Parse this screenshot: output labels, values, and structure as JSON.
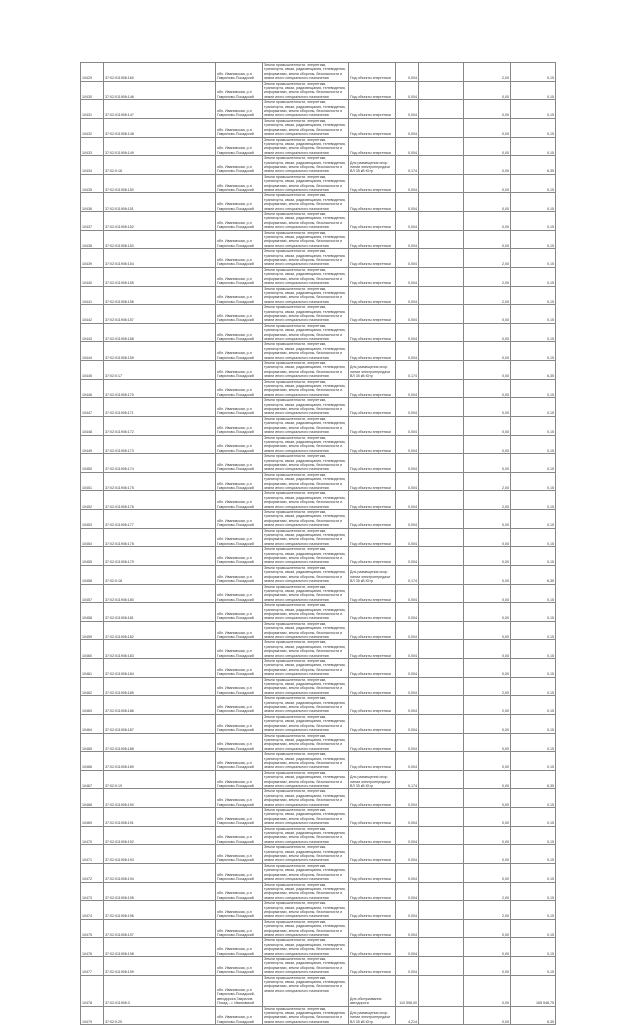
{
  "table": {
    "address": "обл. Ивановская, р-н Гаврилово-Посадский",
    "category": "Земли промышленности, энергетики, транспорта, связи, радиовещания, телевидения, информатики, земли обороны, безопасности и земли иного специального назначения",
    "use_default": "Под объекты энергетики",
    "use_opora": "Для размещения опор линии электропередачи ВЛ 35 кВ Ютр",
    "rows": [
      [
        "10429",
        "37:02:011906:160",
        "d",
        "0,004",
        "2,00",
        "0,15"
      ],
      [
        "10430",
        "37:02:011906:146",
        "d",
        "0,004",
        "0,00",
        "0,15"
      ],
      [
        "10431",
        "37:02:011906:147",
        "d",
        "0,004",
        "0,00",
        "0,15"
      ],
      [
        "10432",
        "37:02:011906:148",
        "d",
        "0,004",
        "0,00",
        "0,15"
      ],
      [
        "10433",
        "37:02:011906:149",
        "d",
        "0,004",
        "0,00",
        "0,15"
      ],
      [
        "10434",
        "37:02:0:16",
        "o",
        "0,174",
        "0,00",
        "6,35"
      ],
      [
        "10435",
        "37:02:011906:150",
        "d",
        "0,004",
        "0,00",
        "0,15"
      ],
      [
        "10436",
        "37:02:011906:151",
        "d",
        "0,004",
        "0,00",
        "0,15"
      ],
      [
        "10437",
        "37:02:011906:152",
        "d",
        "0,004",
        "0,00",
        "0,15"
      ],
      [
        "10438",
        "37:02:011906:153",
        "d",
        "0,004",
        "0,00",
        "0,15"
      ],
      [
        "10439",
        "37:02:011906:154",
        "d",
        "0,004",
        "2,00",
        "0,15"
      ],
      [
        "10440",
        "37:02:011906:155",
        "d",
        "0,004",
        "2,00",
        "0,15"
      ],
      [
        "10441",
        "37:02:011906:156",
        "d",
        "0,004",
        "2,00",
        "0,15"
      ],
      [
        "10442",
        "37:02:011906:157",
        "d",
        "0,004",
        "0,00",
        "0,15"
      ],
      [
        "10443",
        "37:02:011906:158",
        "d",
        "0,004",
        "0,00",
        "0,15"
      ],
      [
        "10444",
        "37:02:011906:159",
        "d",
        "0,004",
        "0,00",
        "0,15"
      ],
      [
        "10445",
        "37:02:0:17",
        "o",
        "0,174",
        "0,00",
        "6,35"
      ],
      [
        "10446",
        "37:02:011906:170",
        "d",
        "0,004",
        "0,00",
        "0,15"
      ],
      [
        "10447",
        "37:02:011906:171",
        "d",
        "0,004",
        "0,00",
        "0,15"
      ],
      [
        "10448",
        "37:02:011906:172",
        "d",
        "0,004",
        "0,00",
        "0,15"
      ],
      [
        "10449",
        "37:02:011906:173",
        "d",
        "0,004",
        "0,00",
        "0,15"
      ],
      [
        "10450",
        "37:02:011906:174",
        "d",
        "0,004",
        "0,00",
        "0,15"
      ],
      [
        "10451",
        "37:02:011906:175",
        "d",
        "0,004",
        "2,00",
        "0,15"
      ],
      [
        "10452",
        "37:02:011906:176",
        "d",
        "0,004",
        "2,00",
        "0,15"
      ],
      [
        "10453",
        "37:02:011906:177",
        "d",
        "0,004",
        "0,00",
        "0,15"
      ],
      [
        "10454",
        "37:02:011906:178",
        "d",
        "0,004",
        "0,00",
        "0,15"
      ],
      [
        "10455",
        "37:02:011906:179",
        "d",
        "0,004",
        "0,00",
        "0,15"
      ],
      [
        "10456",
        "37:02:0:18",
        "o",
        "0,174",
        "0,00",
        "6,35"
      ],
      [
        "10457",
        "37:02:011906:180",
        "d",
        "0,004",
        "0,00",
        "0,15"
      ],
      [
        "10458",
        "37:02:011906:181",
        "d",
        "0,004",
        "0,00",
        "0,15"
      ],
      [
        "10459",
        "37:02:011906:182",
        "d",
        "0,004",
        "0,00",
        "0,15"
      ],
      [
        "10460",
        "37:02:011906:183",
        "d",
        "0,004",
        "0,00",
        "0,15"
      ],
      [
        "10461",
        "37:02:011906:184",
        "d",
        "0,004",
        "0,00",
        "0,15"
      ],
      [
        "10462",
        "37:02:011906:185",
        "d",
        "0,004",
        "2,00",
        "0,15"
      ],
      [
        "10463",
        "37:02:011906:186",
        "d",
        "0,004",
        "2,00",
        "0,15"
      ],
      [
        "10464",
        "37:02:011906:187",
        "d",
        "0,004",
        "0,00",
        "0,15"
      ],
      [
        "10465",
        "37:02:011906:188",
        "d",
        "0,004",
        "0,00",
        "0,15"
      ],
      [
        "10466",
        "37:02:011906:189",
        "d",
        "0,004",
        "0,00",
        "0,15"
      ],
      [
        "10467",
        "37:02:0:19",
        "o",
        "0,174",
        "0,00",
        "6,35"
      ],
      [
        "10468",
        "37:02:011906:190",
        "d",
        "0,004",
        "0,00",
        "0,15"
      ],
      [
        "10469",
        "37:02:011906:191",
        "d",
        "0,004",
        "0,00",
        "0,15"
      ],
      [
        "10470",
        "37:02:011906:192",
        "d",
        "0,004",
        "0,00",
        "0,15"
      ],
      [
        "10471",
        "37:02:011906:193",
        "d",
        "0,004",
        "0,00",
        "0,15"
      ],
      [
        "10472",
        "37:02:011906:194",
        "d",
        "0,004",
        "0,00",
        "0,15"
      ],
      [
        "10473",
        "37:02:011906:195",
        "d",
        "0,004",
        "2,00",
        "0,15"
      ],
      [
        "10474",
        "37:02:011906:196",
        "d",
        "0,004",
        "2,00",
        "0,15"
      ],
      [
        "10475",
        "37:02:011906:197",
        "d",
        "0,004",
        "0,00",
        "0,15"
      ],
      [
        "10476",
        "37:02:011906:198",
        "d",
        "0,004",
        "0,00",
        "0,15"
      ],
      [
        "10477",
        "37:02:011906:199",
        "d",
        "0,004",
        "0,00",
        "0,15"
      ],
      [
        "10478",
        "37:02:011906:3",
        "r",
        "110 596,00",
        "0,00",
        "165 948,75"
      ],
      [
        "10479",
        "37:02:0:20",
        "o",
        "4,214",
        "0,00",
        "6,35"
      ]
    ],
    "road_address": "обл. Ивановская, р-н Гаврилово-Посадский, автодорога Гаврилов Посад – г. Ивановской",
    "use_road": "Для обслуживания автодороги"
  }
}
